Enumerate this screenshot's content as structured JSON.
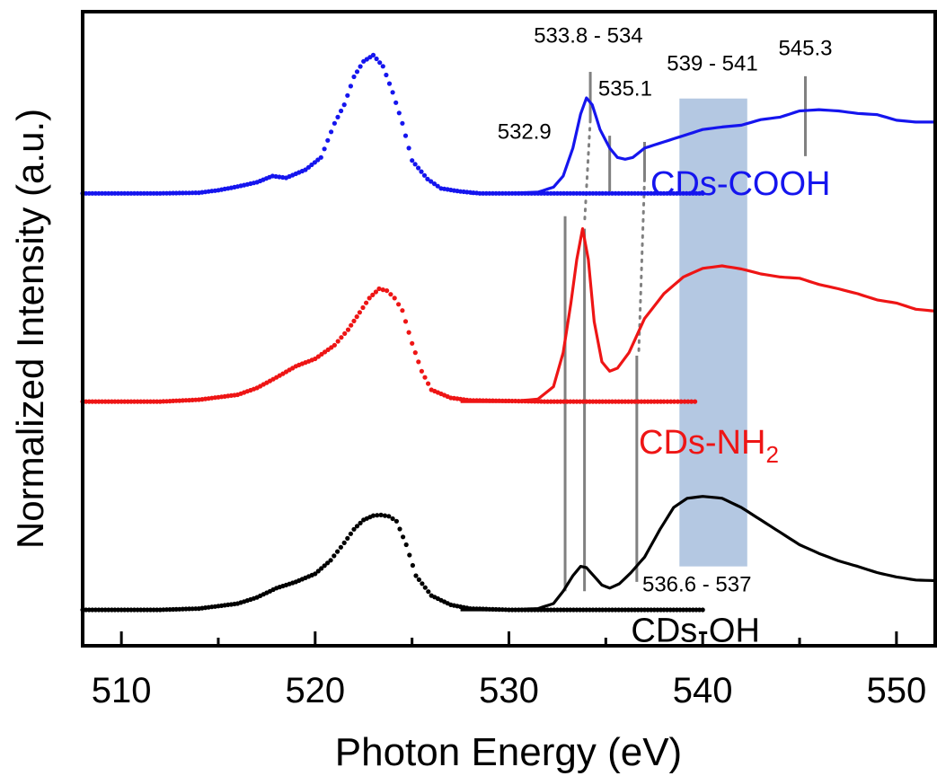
{
  "chart_data": {
    "type": "line",
    "xlabel": "Photon Energy (eV)",
    "ylabel": "Normalized Intensity (a.u.)",
    "xlim": [
      508,
      552
    ],
    "ylim": [
      0,
      1
    ],
    "xticks": [
      510,
      520,
      530,
      540,
      550
    ],
    "yticks_shown": false,
    "grid": false,
    "colors": {
      "cooh": "#1515ee",
      "nh2": "#ee1515",
      "oh": "#000000",
      "marker": "#808080",
      "band": "#b4c8e2"
    },
    "highlight_band": {
      "x_range": [
        538.8,
        542.3
      ],
      "label": "539 - 541"
    },
    "series": [
      {
        "name": "CDs-COOH",
        "color": "#1515ee",
        "label_main": "CDs-COOH",
        "label_sub": "",
        "label_x": 537.3,
        "dotted": {
          "x": [
            508.0,
            510,
            512,
            514,
            515,
            516,
            517,
            517.8,
            518.5,
            519.5,
            520.3,
            521,
            521.5,
            522,
            522.5,
            523,
            523.5,
            524,
            524.5,
            525,
            525.8,
            526.5,
            527.5,
            528.5,
            530,
            532,
            534,
            536,
            538,
            540
          ],
          "y": [
            0.717,
            0.717,
            0.717,
            0.718,
            0.722,
            0.728,
            0.735,
            0.745,
            0.742,
            0.755,
            0.775,
            0.83,
            0.86,
            0.905,
            0.93,
            0.94,
            0.922,
            0.88,
            0.83,
            0.77,
            0.74,
            0.725,
            0.72,
            0.717,
            0.717,
            0.717,
            0.717,
            0.717,
            0.717,
            0.717
          ]
        },
        "solid": {
          "x": [
            528.0,
            530,
            531.5,
            532.3,
            532.8,
            533.3,
            533.7,
            534.0,
            534.3,
            534.7,
            535.2,
            535.6,
            536.0,
            536.4,
            537.0,
            538,
            539,
            540,
            541,
            542,
            543,
            544,
            545,
            546,
            547,
            548,
            549,
            550,
            551,
            552
          ],
          "y": [
            0.717,
            0.717,
            0.719,
            0.727,
            0.745,
            0.79,
            0.845,
            0.871,
            0.86,
            0.82,
            0.79,
            0.775,
            0.772,
            0.775,
            0.79,
            0.8,
            0.81,
            0.82,
            0.824,
            0.827,
            0.836,
            0.84,
            0.85,
            0.852,
            0.85,
            0.846,
            0.844,
            0.835,
            0.832,
            0.832
          ]
        }
      },
      {
        "name": "CDs-NH2",
        "color": "#ee1515",
        "label_main": "CDs-NH",
        "label_sub": "2",
        "label_x": 536.7,
        "dotted": {
          "x": [
            508.0,
            512,
            514,
            516,
            517,
            518,
            519,
            520,
            521,
            521.7,
            522.3,
            522.8,
            523.3,
            523.7,
            524.1,
            524.5,
            525,
            525.5,
            526,
            527,
            528,
            530,
            532,
            534,
            536,
            538,
            539.6
          ],
          "y": [
            0.381,
            0.381,
            0.384,
            0.392,
            0.403,
            0.42,
            0.438,
            0.45,
            0.472,
            0.497,
            0.525,
            0.548,
            0.563,
            0.56,
            0.548,
            0.528,
            0.475,
            0.43,
            0.4,
            0.387,
            0.383,
            0.382,
            0.381,
            0.381,
            0.381,
            0.381,
            0.381
          ]
        },
        "solid": {
          "x": [
            527.5,
            530,
            531.5,
            532.3,
            532.8,
            533.2,
            533.5,
            533.8,
            534.1,
            534.4,
            534.8,
            535.2,
            535.6,
            536.2,
            537,
            538,
            539,
            540,
            541,
            542,
            543,
            544,
            545,
            546,
            547,
            548,
            549,
            550,
            551,
            552
          ],
          "y": [
            0.381,
            0.381,
            0.385,
            0.405,
            0.46,
            0.54,
            0.61,
            0.66,
            0.61,
            0.51,
            0.445,
            0.43,
            0.435,
            0.46,
            0.515,
            0.555,
            0.582,
            0.596,
            0.6,
            0.595,
            0.587,
            0.582,
            0.58,
            0.57,
            0.563,
            0.555,
            0.545,
            0.54,
            0.53,
            0.527
          ]
        }
      },
      {
        "name": "CDs-OH",
        "color": "#000000",
        "label_main": "CDs-OH",
        "label_sub": "",
        "label_x": 536.3,
        "dotted": {
          "x": [
            508.0,
            512,
            514,
            516,
            517,
            518,
            519,
            520,
            520.8,
            521.5,
            522,
            522.5,
            523,
            523.4,
            523.8,
            524.2,
            524.7,
            525.2,
            526,
            527,
            528,
            530,
            532,
            534,
            536,
            538,
            540
          ],
          "y": [
            0.045,
            0.045,
            0.047,
            0.055,
            0.065,
            0.08,
            0.09,
            0.103,
            0.125,
            0.153,
            0.175,
            0.19,
            0.197,
            0.198,
            0.196,
            0.188,
            0.15,
            0.1,
            0.068,
            0.053,
            0.047,
            0.045,
            0.045,
            0.045,
            0.045,
            0.045,
            0.045
          ]
        },
        "solid": {
          "x": [
            527.5,
            530,
            531.5,
            532.3,
            532.8,
            533.3,
            533.7,
            534.0,
            534.4,
            534.8,
            535.2,
            535.7,
            536.3,
            537,
            537.8,
            538.5,
            539.2,
            540,
            541,
            542,
            543,
            544,
            545,
            546,
            547,
            548,
            549,
            550,
            551,
            552
          ],
          "y": [
            0.045,
            0.045,
            0.047,
            0.055,
            0.075,
            0.1,
            0.115,
            0.113,
            0.099,
            0.085,
            0.08,
            0.087,
            0.105,
            0.13,
            0.175,
            0.21,
            0.225,
            0.228,
            0.225,
            0.21,
            0.19,
            0.17,
            0.15,
            0.136,
            0.124,
            0.115,
            0.105,
            0.098,
            0.093,
            0.092
          ]
        }
      }
    ],
    "vertical_markers": [
      {
        "x": 532.9,
        "y_from": 0.075,
        "y_to": 0.68
      },
      {
        "x": 533.9,
        "y_from": 0.075,
        "y_to": 0.66
      },
      {
        "x": 536.6,
        "y_from": 0.09,
        "y_to": 0.455
      }
    ],
    "short_markers": [
      {
        "x": 534.2,
        "y_from": 0.835,
        "y_to": 0.913
      },
      {
        "x": 535.2,
        "y_from": 0.72,
        "y_to": 0.81
      },
      {
        "x": 537.0,
        "y_from": 0.74,
        "y_to": 0.8
      },
      {
        "x": 545.3,
        "y_from": 0.777,
        "y_to": 0.906
      }
    ],
    "dashed_guides": [
      {
        "x1": 534.2,
        "y1": 0.835,
        "x2": 533.9,
        "y2": 0.668
      },
      {
        "x1": 537.0,
        "y1": 0.74,
        "x2": 536.7,
        "y2": 0.46
      }
    ],
    "annotations": [
      {
        "text": "533.8 - 534",
        "x": 534.1,
        "y": 0.96,
        "anchor": "middle"
      },
      {
        "text": "545.3",
        "x": 545.3,
        "y": 0.94,
        "anchor": "middle"
      },
      {
        "text": "539 - 541",
        "x": 540.5,
        "y": 0.915,
        "anchor": "middle"
      },
      {
        "text": "535.1",
        "x": 536.0,
        "y": 0.875,
        "anchor": "middle"
      },
      {
        "text": "532.9",
        "x": 530.8,
        "y": 0.805,
        "anchor": "middle"
      },
      {
        "text": "536.6 - 537",
        "x": 539.7,
        "y": 0.075,
        "anchor": "middle"
      }
    ]
  }
}
